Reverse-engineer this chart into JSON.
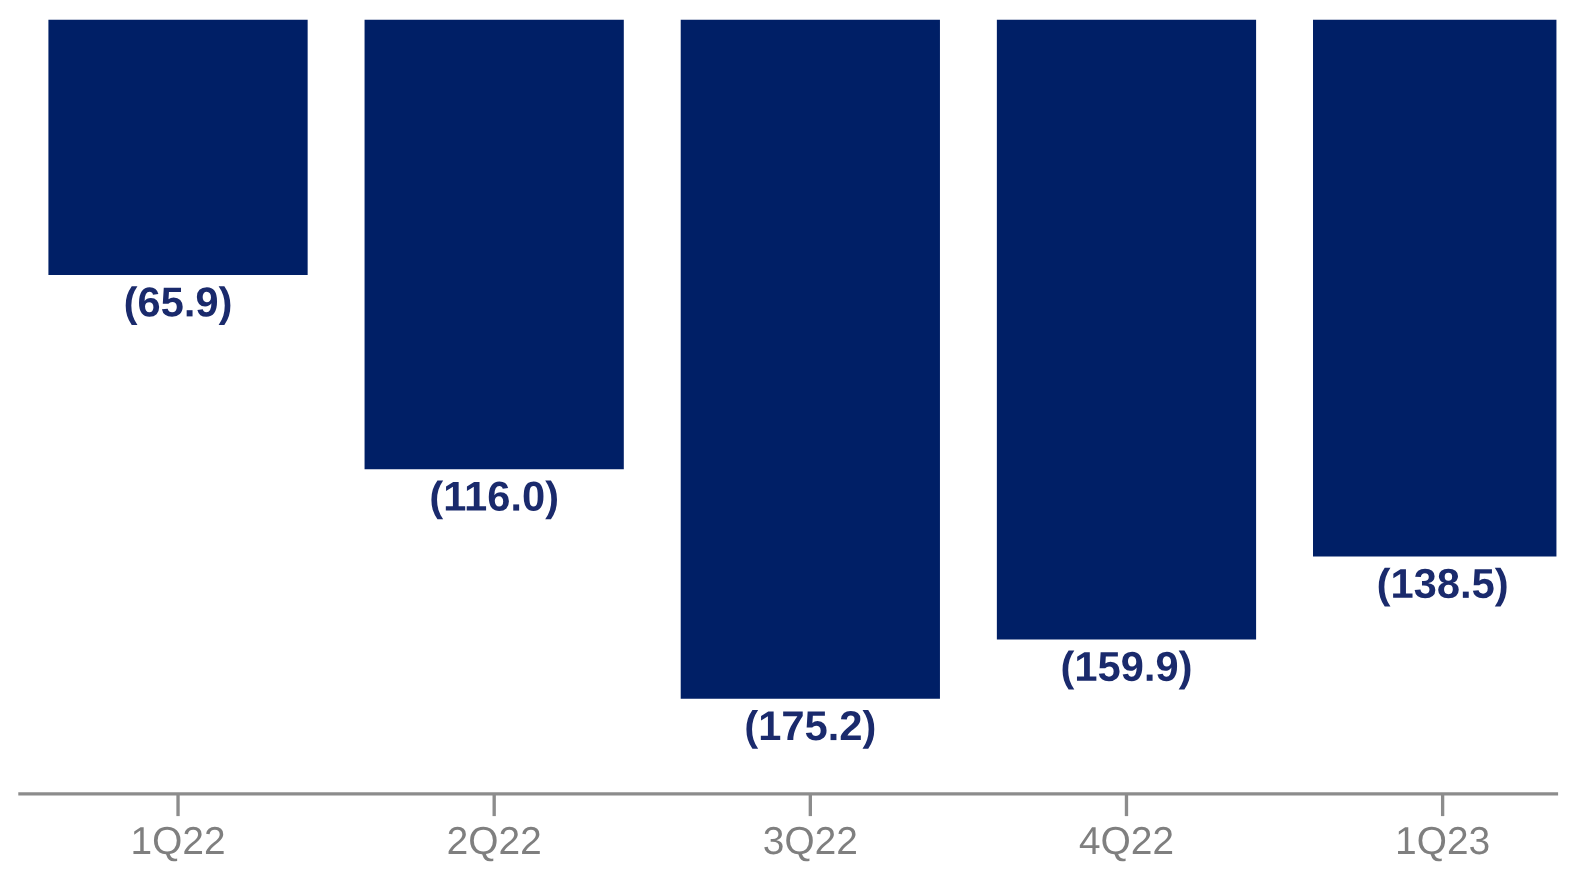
{
  "chart_data": {
    "type": "bar",
    "categories": [
      "1Q22",
      "2Q22",
      "3Q22",
      "4Q22",
      "1Q23"
    ],
    "values": [
      -65.9,
      -116.0,
      -175.2,
      -159.9,
      -138.5
    ],
    "value_labels": [
      "(65.9)",
      "(116.0)",
      "(175.2)",
      "(159.9)",
      "(138.5)"
    ],
    "color": "#001f66",
    "grid": false,
    "legend": false
  }
}
